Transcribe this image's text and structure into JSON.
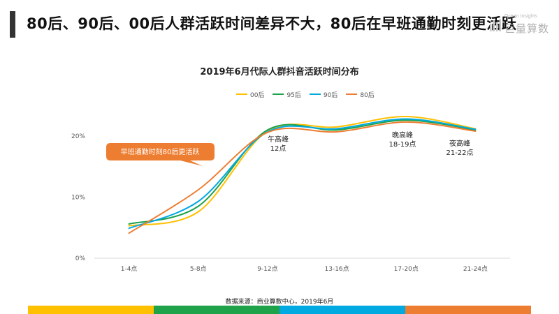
{
  "header": {
    "headline": "80后、90后、00后人群活跃时间差异不大，80后在早班通勤时刻更活跃",
    "accent_color": "#333333",
    "logo_sub": "Ocean Insights",
    "logo_main": "巨量算数"
  },
  "source": "数据来源：商业算数中心，2019年6月",
  "bottom_bar_colors": [
    "#ffc000",
    "#1ea24a",
    "#00a9e0",
    "#ed7d31"
  ],
  "chart_data": {
    "type": "line",
    "title": "2019年6月代际人群抖音活跃时间分布",
    "categories": [
      "1-4点",
      "5-8点",
      "9-12点",
      "13-16点",
      "17-20点",
      "21-24点"
    ],
    "y_ticks": [
      "0%",
      "10%",
      "20%"
    ],
    "ylim": [
      0,
      20
    ],
    "grid": false,
    "legend_position": "top",
    "series": [
      {
        "name": "00后",
        "color": "#ffc000",
        "values": [
          5.3,
          7.6,
          20.8,
          21.5,
          23.2,
          21.2
        ]
      },
      {
        "name": "95后",
        "color": "#1ea24a",
        "values": [
          5.6,
          8.5,
          21.0,
          21.0,
          22.6,
          21.0
        ]
      },
      {
        "name": "90后",
        "color": "#00a9e0",
        "values": [
          4.9,
          9.3,
          20.7,
          21.2,
          22.8,
          21.1
        ]
      },
      {
        "name": "80后",
        "color": "#ed7d31",
        "values": [
          4.1,
          11.2,
          20.6,
          20.7,
          22.3,
          20.8
        ]
      }
    ],
    "annotations": {
      "callout": "早班通勤时刻80后更活跃",
      "callout_color": "#ed7d31",
      "peak_noon": [
        "午高峰",
        "12点"
      ],
      "peak_evening": [
        "晚高峰",
        "18-19点"
      ],
      "peak_night": [
        "夜高峰",
        "21-22点"
      ]
    }
  }
}
